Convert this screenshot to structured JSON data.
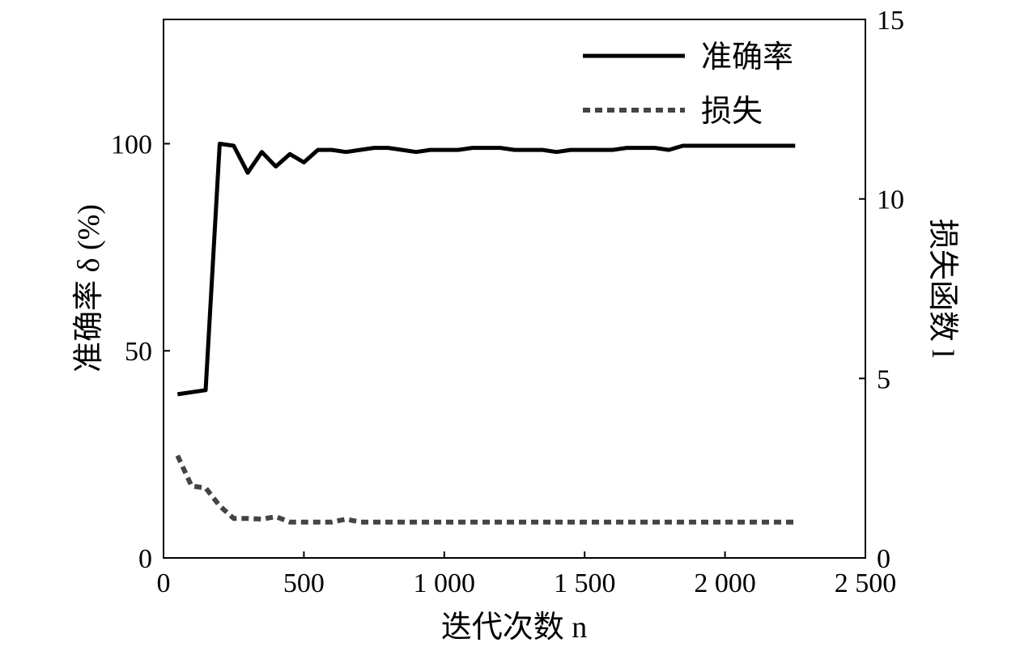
{
  "chart_data": {
    "type": "line",
    "xlabel": "迭代次数 n",
    "ylabel_left": "准确率 δ (%)",
    "ylabel_right": "损失函数 l",
    "xlim": [
      0,
      2500
    ],
    "ylim_left": [
      0,
      130
    ],
    "ylim_right": [
      0,
      15
    ],
    "x_ticks": [
      0,
      500,
      1000,
      1500,
      2000,
      2500
    ],
    "x_tick_labels": [
      "0",
      "500",
      "1 000",
      "1 500",
      "2 000",
      "2 500"
    ],
    "y_left_ticks": [
      0,
      50,
      100
    ],
    "y_left_tick_labels": [
      "0",
      "50",
      "100"
    ],
    "y_right_ticks": [
      0,
      5,
      10,
      15
    ],
    "y_right_tick_labels": [
      "0",
      "5",
      "10",
      "15"
    ],
    "legend_position": "top-right",
    "grid": false,
    "series": [
      {
        "name": "准确率",
        "axis": "left",
        "style": "solid",
        "color": "#000000",
        "x": [
          50,
          150,
          200,
          250,
          300,
          350,
          400,
          450,
          500,
          550,
          600,
          650,
          700,
          750,
          800,
          850,
          900,
          950,
          1000,
          1050,
          1100,
          1150,
          1200,
          1250,
          1300,
          1350,
          1400,
          1450,
          1500,
          1550,
          1600,
          1650,
          1700,
          1750,
          1800,
          1850,
          1900,
          1950,
          2000,
          2050,
          2100,
          2150,
          2200,
          2250
        ],
        "values": [
          39.5,
          40.5,
          100,
          99.5,
          93,
          98,
          94.5,
          97.5,
          95.5,
          98.5,
          98.5,
          98,
          98.5,
          99,
          99,
          98.5,
          98,
          98.5,
          98.5,
          98.5,
          99,
          99,
          99,
          98.5,
          98.5,
          98.5,
          98,
          98.5,
          98.5,
          98.5,
          98.5,
          99,
          99,
          99,
          98.5,
          99.5,
          99.5,
          99.5,
          99.5,
          99.5,
          99.5,
          99.5,
          99.5,
          99.5
        ]
      },
      {
        "name": "损失",
        "axis": "right",
        "style": "dotted",
        "color": "#444444",
        "x": [
          50,
          100,
          150,
          200,
          250,
          300,
          350,
          400,
          450,
          500,
          550,
          600,
          650,
          700,
          750,
          800,
          900,
          1000,
          1100,
          1200,
          1300,
          1400,
          1500,
          1600,
          1700,
          1800,
          1900,
          2000,
          2100,
          2200,
          2250
        ],
        "values": [
          2.85,
          2.0,
          1.95,
          1.45,
          1.1,
          1.1,
          1.08,
          1.15,
          1.0,
          1.0,
          1.0,
          1.0,
          1.08,
          1.0,
          1.0,
          1.0,
          1.0,
          1.0,
          1.0,
          1.0,
          1.0,
          1.0,
          1.0,
          1.0,
          1.0,
          1.0,
          1.0,
          1.0,
          1.0,
          1.0,
          1.0
        ]
      }
    ]
  }
}
